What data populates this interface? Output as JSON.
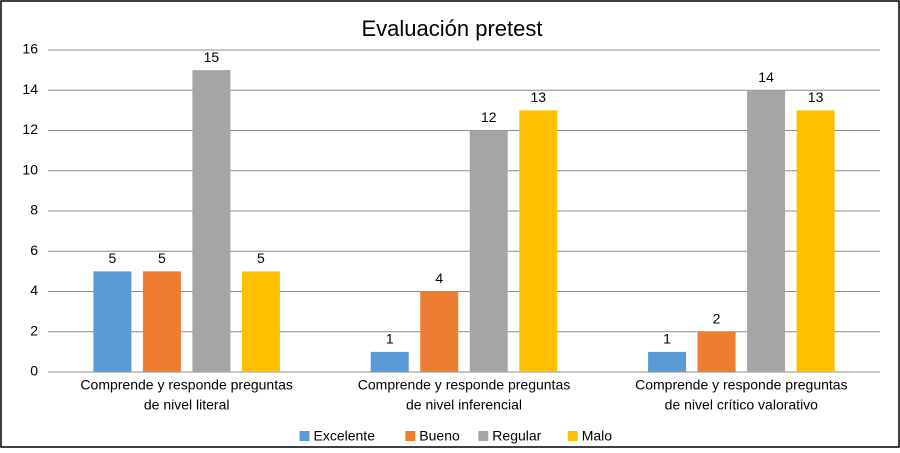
{
  "chart_data": {
    "type": "bar",
    "title": "Evaluación pretest",
    "categories": [
      [
        "Comprende y responde preguntas",
        "de nivel literal"
      ],
      [
        "Comprende y responde preguntas",
        "de nivel inferencial"
      ],
      [
        "Comprende y responde preguntas",
        "de nivel crítico valorativo"
      ]
    ],
    "series": [
      {
        "name": "Excelente",
        "color": "#5b9bd5",
        "values": [
          5,
          1,
          1
        ]
      },
      {
        "name": "Bueno",
        "color": "#ed7d31",
        "values": [
          5,
          4,
          2
        ]
      },
      {
        "name": "Regular",
        "color": "#a5a5a5",
        "values": [
          15,
          12,
          14
        ]
      },
      {
        "name": "Malo",
        "color": "#ffc000",
        "values": [
          5,
          13,
          13
        ]
      }
    ],
    "ylim": [
      0,
      16
    ],
    "yticks": [
      0,
      2,
      4,
      6,
      8,
      10,
      12,
      14,
      16
    ],
    "grid": true,
    "legend": "bottom"
  }
}
